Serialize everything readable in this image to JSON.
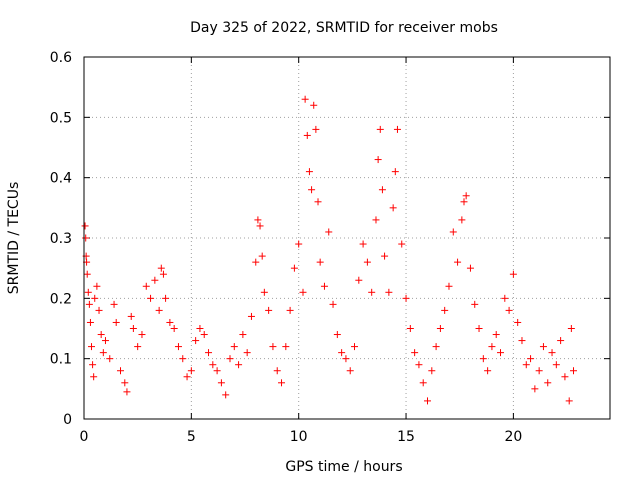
{
  "chart_data": {
    "type": "scatter",
    "title": "Day 325 of 2022, SRMTID for receiver mobs",
    "xlabel": "GPS time / hours",
    "ylabel": "SRMTID / TECUs",
    "xlim": [
      0,
      24.5
    ],
    "ylim": [
      0,
      0.6
    ],
    "xticks": [
      0,
      5,
      10,
      15,
      20
    ],
    "xtick_labels": [
      "0",
      "5",
      "10",
      "15",
      "20"
    ],
    "yticks": [
      0,
      0.1,
      0.2,
      0.3,
      0.4,
      0.5,
      0.6
    ],
    "ytick_labels": [
      "0",
      "0.1",
      "0.2",
      "0.3",
      "0.4",
      "0.5",
      "0.6"
    ],
    "grid": true,
    "marker": "+",
    "color": "#ff0000",
    "series": [
      {
        "name": "SRMTID",
        "points": [
          [
            0.05,
            0.32
          ],
          [
            0.08,
            0.3
          ],
          [
            0.1,
            0.27
          ],
          [
            0.12,
            0.26
          ],
          [
            0.15,
            0.24
          ],
          [
            0.2,
            0.21
          ],
          [
            0.25,
            0.19
          ],
          [
            0.3,
            0.16
          ],
          [
            0.35,
            0.12
          ],
          [
            0.4,
            0.09
          ],
          [
            0.45,
            0.07
          ],
          [
            0.5,
            0.2
          ],
          [
            0.6,
            0.22
          ],
          [
            0.7,
            0.18
          ],
          [
            0.8,
            0.14
          ],
          [
            0.9,
            0.11
          ],
          [
            1.0,
            0.13
          ],
          [
            1.2,
            0.1
          ],
          [
            1.4,
            0.19
          ],
          [
            1.5,
            0.16
          ],
          [
            1.7,
            0.08
          ],
          [
            1.9,
            0.06
          ],
          [
            2.0,
            0.045
          ],
          [
            2.2,
            0.17
          ],
          [
            2.3,
            0.15
          ],
          [
            2.5,
            0.12
          ],
          [
            2.7,
            0.14
          ],
          [
            2.9,
            0.22
          ],
          [
            3.1,
            0.2
          ],
          [
            3.3,
            0.23
          ],
          [
            3.5,
            0.18
          ],
          [
            3.6,
            0.25
          ],
          [
            3.7,
            0.24
          ],
          [
            3.8,
            0.2
          ],
          [
            4.0,
            0.16
          ],
          [
            4.2,
            0.15
          ],
          [
            4.4,
            0.12
          ],
          [
            4.6,
            0.1
          ],
          [
            4.8,
            0.07
          ],
          [
            5.0,
            0.08
          ],
          [
            5.2,
            0.13
          ],
          [
            5.4,
            0.15
          ],
          [
            5.6,
            0.14
          ],
          [
            5.8,
            0.11
          ],
          [
            6.0,
            0.09
          ],
          [
            6.2,
            0.08
          ],
          [
            6.4,
            0.06
          ],
          [
            6.6,
            0.04
          ],
          [
            6.8,
            0.1
          ],
          [
            7.0,
            0.12
          ],
          [
            7.2,
            0.09
          ],
          [
            7.4,
            0.14
          ],
          [
            7.6,
            0.11
          ],
          [
            7.8,
            0.17
          ],
          [
            8.0,
            0.26
          ],
          [
            8.1,
            0.33
          ],
          [
            8.2,
            0.32
          ],
          [
            8.3,
            0.27
          ],
          [
            8.4,
            0.21
          ],
          [
            8.6,
            0.18
          ],
          [
            8.8,
            0.12
          ],
          [
            9.0,
            0.08
          ],
          [
            9.2,
            0.06
          ],
          [
            9.4,
            0.12
          ],
          [
            9.6,
            0.18
          ],
          [
            9.8,
            0.25
          ],
          [
            10.0,
            0.29
          ],
          [
            10.2,
            0.21
          ],
          [
            10.3,
            0.53
          ],
          [
            10.4,
            0.47
          ],
          [
            10.5,
            0.41
          ],
          [
            10.6,
            0.38
          ],
          [
            10.7,
            0.52
          ],
          [
            10.8,
            0.48
          ],
          [
            10.9,
            0.36
          ],
          [
            11.0,
            0.26
          ],
          [
            11.2,
            0.22
          ],
          [
            11.4,
            0.31
          ],
          [
            11.6,
            0.19
          ],
          [
            11.8,
            0.14
          ],
          [
            12.0,
            0.11
          ],
          [
            12.2,
            0.1
          ],
          [
            12.4,
            0.08
          ],
          [
            12.6,
            0.12
          ],
          [
            12.8,
            0.23
          ],
          [
            13.0,
            0.29
          ],
          [
            13.2,
            0.26
          ],
          [
            13.4,
            0.21
          ],
          [
            13.6,
            0.33
          ],
          [
            13.7,
            0.43
          ],
          [
            13.8,
            0.48
          ],
          [
            13.9,
            0.38
          ],
          [
            14.0,
            0.27
          ],
          [
            14.2,
            0.21
          ],
          [
            14.4,
            0.35
          ],
          [
            14.5,
            0.41
          ],
          [
            14.6,
            0.48
          ],
          [
            14.8,
            0.29
          ],
          [
            15.0,
            0.2
          ],
          [
            15.2,
            0.15
          ],
          [
            15.4,
            0.11
          ],
          [
            15.6,
            0.09
          ],
          [
            15.8,
            0.06
          ],
          [
            16.0,
            0.03
          ],
          [
            16.2,
            0.08
          ],
          [
            16.4,
            0.12
          ],
          [
            16.6,
            0.15
          ],
          [
            16.8,
            0.18
          ],
          [
            17.0,
            0.22
          ],
          [
            17.2,
            0.31
          ],
          [
            17.4,
            0.26
          ],
          [
            17.6,
            0.33
          ],
          [
            17.7,
            0.36
          ],
          [
            17.8,
            0.37
          ],
          [
            18.0,
            0.25
          ],
          [
            18.2,
            0.19
          ],
          [
            18.4,
            0.15
          ],
          [
            18.6,
            0.1
          ],
          [
            18.8,
            0.08
          ],
          [
            19.0,
            0.12
          ],
          [
            19.2,
            0.14
          ],
          [
            19.4,
            0.11
          ],
          [
            19.6,
            0.2
          ],
          [
            19.8,
            0.18
          ],
          [
            20.0,
            0.24
          ],
          [
            20.2,
            0.16
          ],
          [
            20.4,
            0.13
          ],
          [
            20.6,
            0.09
          ],
          [
            20.8,
            0.1
          ],
          [
            21.0,
            0.05
          ],
          [
            21.2,
            0.08
          ],
          [
            21.4,
            0.12
          ],
          [
            21.6,
            0.06
          ],
          [
            21.8,
            0.11
          ],
          [
            22.0,
            0.09
          ],
          [
            22.2,
            0.13
          ],
          [
            22.4,
            0.07
          ],
          [
            22.6,
            0.03
          ],
          [
            22.7,
            0.15
          ],
          [
            22.8,
            0.08
          ]
        ]
      }
    ]
  }
}
